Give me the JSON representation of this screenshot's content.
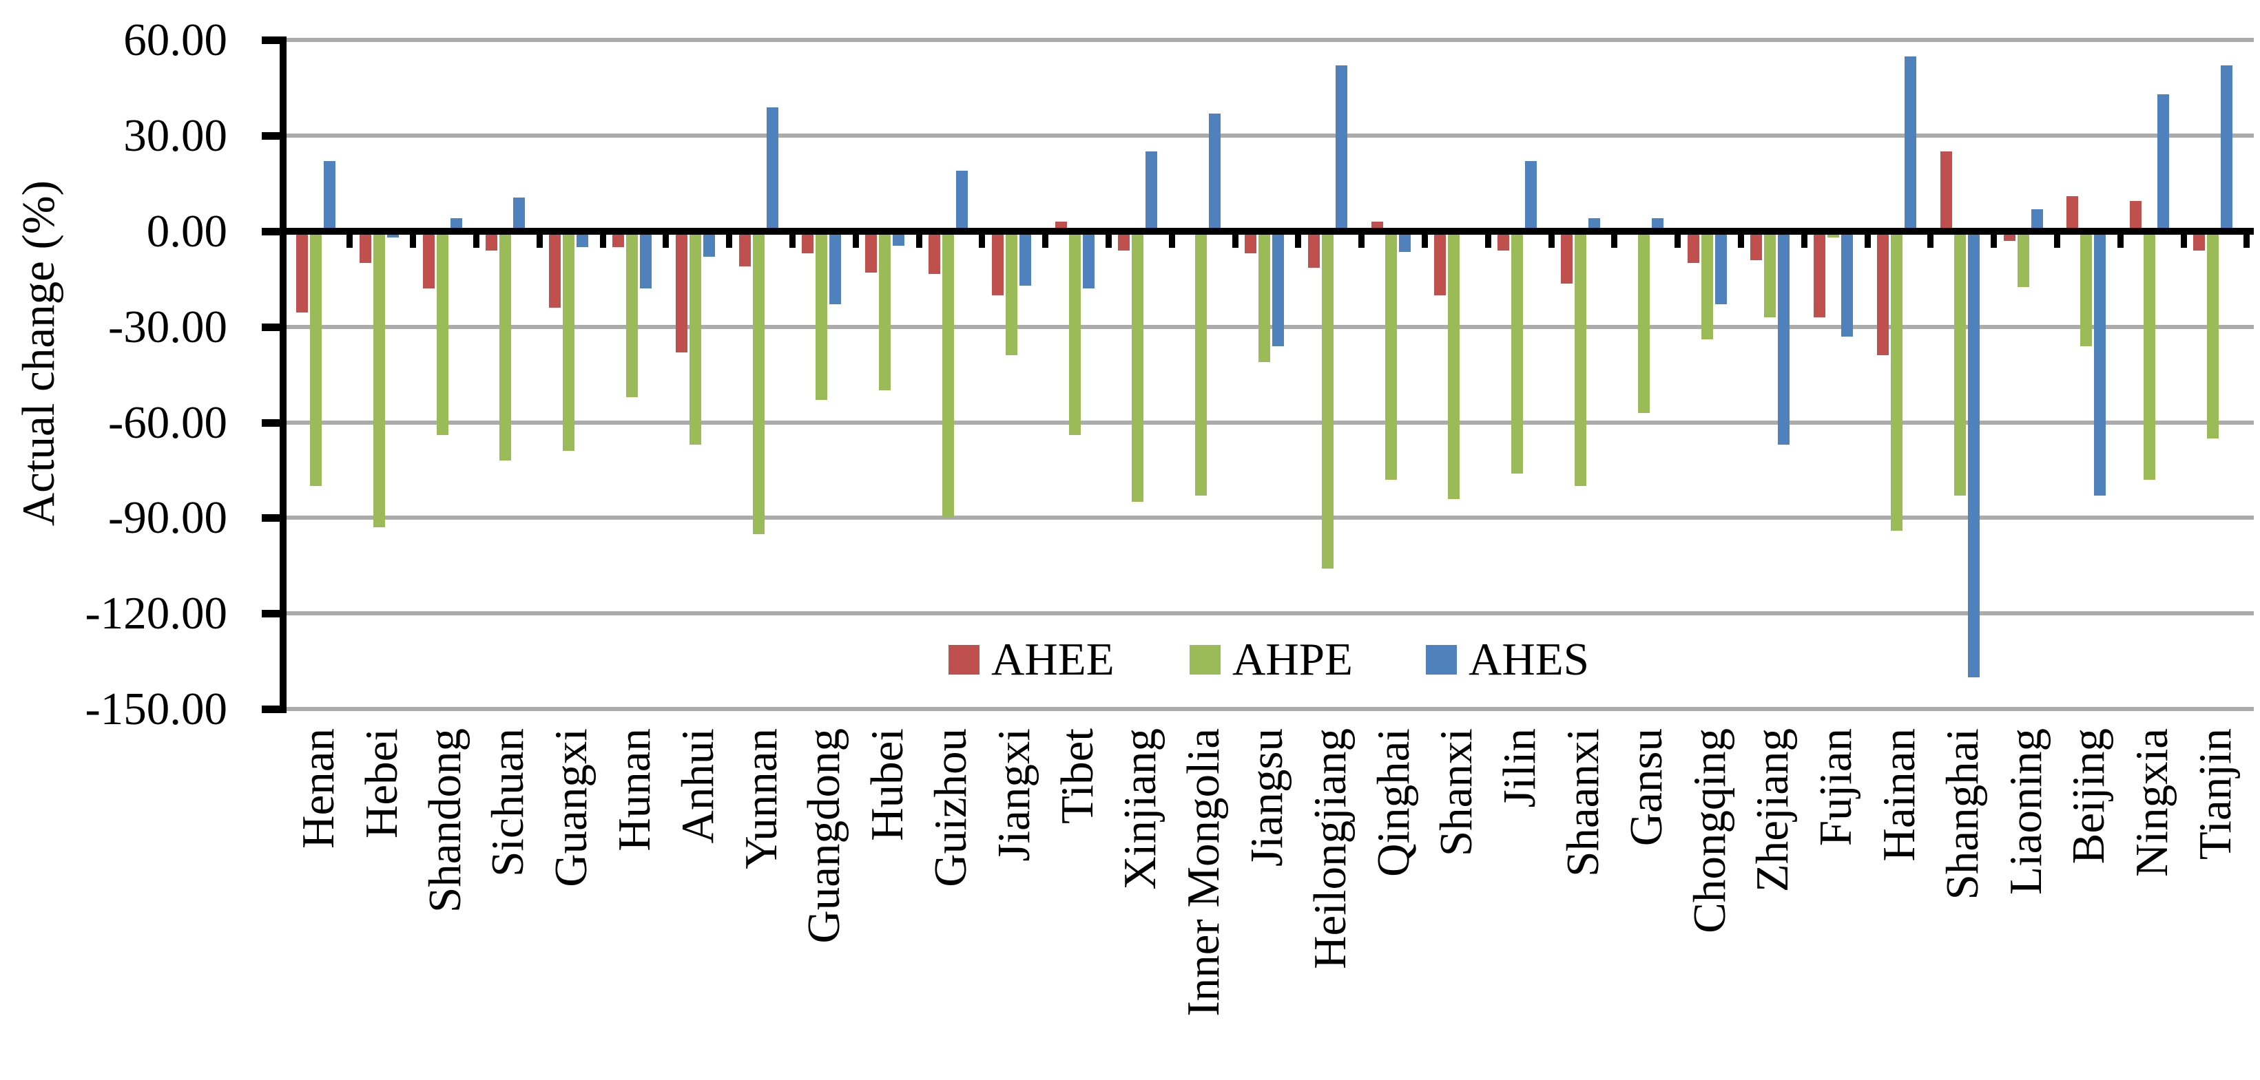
{
  "chart_data": {
    "type": "bar",
    "title": "",
    "xlabel": "",
    "ylabel": "Actual change (%)",
    "ylim": [
      -150,
      60
    ],
    "ytick_step": 30,
    "grid": true,
    "legend_position": "inside-bottom-center",
    "yticks": [
      {
        "value": 60,
        "label": "60.00"
      },
      {
        "value": 30,
        "label": "30.00"
      },
      {
        "value": 0,
        "label": "0.00"
      },
      {
        "value": -30,
        "label": "-30.00"
      },
      {
        "value": -60,
        "label": "-60.00"
      },
      {
        "value": -90,
        "label": "-90.00"
      },
      {
        "value": -120,
        "label": "-120.00"
      },
      {
        "value": -150,
        "label": "-150.00"
      }
    ],
    "categories": [
      "Henan",
      "Hebei",
      "Shandong",
      "Sichuan",
      "Guangxi",
      "Hunan",
      "Anhui",
      "Yunnan",
      "Guangdong",
      "Hubei",
      "Guizhou",
      "Jiangxi",
      "Tibet",
      "Xinjiang",
      "Inner Mongolia",
      "Jiangsu",
      "Heilongjiang",
      "Qinghai",
      "Shanxi",
      "Jilin",
      "Shaanxi",
      "Gansu",
      "Chongqing",
      "Zhejiang",
      "Fujian",
      "Hainan",
      "Shanghai",
      "Liaoning",
      "Beijing",
      "Ningxia",
      "Tianjin"
    ],
    "series": [
      {
        "name": "AHEE",
        "color": "#C0504D",
        "values": [
          -25.5,
          -10,
          -18,
          -6,
          -24,
          -5,
          -38,
          -11,
          -7,
          -13,
          -13.5,
          -20,
          3,
          -6,
          0,
          -7,
          -11.5,
          3,
          -20,
          -6,
          -16.5,
          0,
          -10,
          -9,
          -27,
          -39,
          25,
          -3,
          11,
          9.5,
          -6
        ]
      },
      {
        "name": "AHPE",
        "color": "#9BBB59",
        "values": [
          -80,
          -93,
          -64,
          -72,
          -69,
          -52,
          -67,
          -95,
          -53,
          -50,
          -90,
          -39,
          -64,
          -85,
          -83,
          -41,
          -106,
          -78,
          -84,
          -76,
          -80,
          -57,
          -34,
          -27,
          -2,
          -94,
          -83,
          -17.5,
          -36,
          -78,
          -65
        ]
      },
      {
        "name": "AHES",
        "color": "#4F81BD",
        "values": [
          22,
          -2,
          4,
          10.5,
          -5,
          -18,
          -8,
          39,
          -23,
          -4.5,
          19,
          -17,
          -18,
          25,
          37,
          -36,
          52,
          -6.5,
          0,
          22,
          4,
          4,
          -23,
          -67,
          -33,
          55,
          -140,
          7,
          -83,
          43,
          52
        ]
      }
    ]
  },
  "colors": {
    "gridline": "#ABABAB",
    "axis": "#000000",
    "background": "#FFFFFF"
  }
}
